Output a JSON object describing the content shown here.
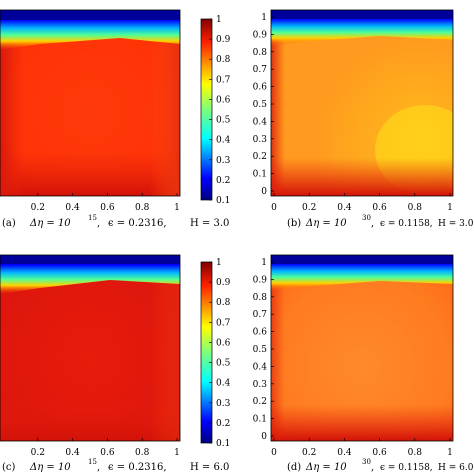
{
  "chart_data": [
    {
      "type": "heatmap",
      "panel": "a",
      "caption": {
        "tag": "(a)",
        "parts": [
          "Δη = 10",
          "15",
          ",",
          "ϵ = 0.2316,",
          "H = 3.0"
        ]
      },
      "xticks": [
        "0.2",
        "0.4",
        "0.6",
        "0.8",
        "1"
      ],
      "xlim": [
        0,
        1
      ],
      "ylim": [
        0,
        1
      ],
      "field": {
        "interior": 0.88,
        "left_wall": 0.9,
        "bottom": 0.92,
        "top_lid": 0.1
      },
      "colorbar": {
        "ticks": [
          "1",
          "0.9",
          "0.8",
          "0.7",
          "0.6",
          "0.5",
          "0.4",
          "0.3",
          "0.2",
          "0.1"
        ],
        "range": [
          0.1,
          1
        ]
      }
    },
    {
      "type": "heatmap",
      "panel": "b",
      "caption": {
        "tag": "(b)",
        "parts": [
          "Δη = 10",
          "30",
          ",",
          "ϵ = 0.1158,",
          "H = 3.0"
        ]
      },
      "xticks": [
        "0",
        "0.2",
        "0.4",
        "0.6",
        "0.8",
        "1"
      ],
      "yticks": [
        "0",
        "0.1",
        "0.2",
        "0.3",
        "0.4",
        "0.5",
        "0.6",
        "0.7",
        "0.8",
        "0.9",
        "1"
      ],
      "xlim": [
        0,
        1
      ],
      "ylim": [
        0,
        1
      ],
      "field": {
        "interior": 0.78,
        "lower_right": 0.74,
        "bottom": 0.92,
        "top_lid": 0.1
      }
    },
    {
      "type": "heatmap",
      "panel": "c",
      "caption": {
        "tag": "(c)",
        "parts": [
          "Δη = 10",
          "15",
          ",",
          "ϵ = 0.2316,",
          "H = 6.0"
        ]
      },
      "xticks": [
        "0.2",
        "0.4",
        "0.6",
        "0.8",
        "1"
      ],
      "xlim": [
        0,
        1
      ],
      "ylim": [
        0,
        1
      ],
      "field": {
        "interior": 0.93,
        "bottom": 0.93,
        "top_lid": 0.1
      },
      "colorbar": {
        "ticks": [
          "1",
          "0.9",
          "0.8",
          "0.7",
          "0.6",
          "0.5",
          "0.4",
          "0.3",
          "0.2",
          "0.1"
        ],
        "range": [
          0.1,
          1
        ]
      }
    },
    {
      "type": "heatmap",
      "panel": "d",
      "caption": {
        "tag": "(d)",
        "parts": [
          "Δη = 10",
          "30",
          ",",
          "ϵ = 0.1158,",
          "H = 6.0"
        ]
      },
      "xticks": [
        "0",
        "0.2",
        "0.4",
        "0.6",
        "0.8",
        "1"
      ],
      "yticks": [
        "0",
        "0.1",
        "0.2",
        "0.3",
        "0.4",
        "0.5",
        "0.6",
        "0.7",
        "0.8",
        "0.9",
        "1"
      ],
      "xlim": [
        0,
        1
      ],
      "ylim": [
        0,
        1
      ],
      "field": {
        "interior": 0.84,
        "bottom": 0.93,
        "top_lid": 0.1
      }
    }
  ]
}
